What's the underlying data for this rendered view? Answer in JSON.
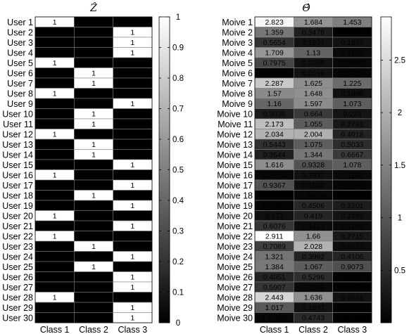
{
  "chart_data": [
    {
      "type": "heatmap",
      "title": "Ẑ",
      "categories": [
        "Class 1",
        "Class 2",
        "Class 3"
      ],
      "rows": [
        "User 1",
        "User 2",
        "User 3",
        "User 4",
        "User 5",
        "User 6",
        "User 7",
        "User 8",
        "User 9",
        "User 10",
        "User 11",
        "User 12",
        "User 13",
        "User 14",
        "User 15",
        "User 16",
        "User 17",
        "User 18",
        "User 19",
        "User 20",
        "User 21",
        "User 22",
        "User 23",
        "User 24",
        "User 25",
        "User 26",
        "User 27",
        "User 28",
        "User 29",
        "User 30"
      ],
      "values": [
        [
          1,
          0,
          0
        ],
        [
          0,
          0,
          1
        ],
        [
          0,
          0,
          1
        ],
        [
          0,
          0,
          1
        ],
        [
          1,
          0,
          0
        ],
        [
          0,
          1,
          0
        ],
        [
          0,
          1,
          0
        ],
        [
          1,
          0,
          0
        ],
        [
          0,
          0,
          1
        ],
        [
          0,
          1,
          0
        ],
        [
          0,
          1,
          0
        ],
        [
          1,
          0,
          0
        ],
        [
          0,
          1,
          0
        ],
        [
          0,
          1,
          0
        ],
        [
          0,
          0,
          1
        ],
        [
          1,
          0,
          0
        ],
        [
          0,
          0,
          1
        ],
        [
          0,
          1,
          0
        ],
        [
          0,
          0,
          1
        ],
        [
          1,
          0,
          0
        ],
        [
          0,
          0,
          1
        ],
        [
          1,
          0,
          0
        ],
        [
          0,
          1,
          0
        ],
        [
          0,
          0,
          1
        ],
        [
          0,
          1,
          0
        ],
        [
          0,
          0,
          1
        ],
        [
          0,
          0,
          1
        ],
        [
          1,
          0,
          0
        ],
        [
          0,
          0,
          1
        ],
        [
          0,
          0,
          1
        ]
      ],
      "labels": [
        [
          "1",
          "0",
          "0"
        ],
        [
          "0",
          "0",
          "1"
        ],
        [
          "0",
          "0",
          "1"
        ],
        [
          "0",
          "0",
          "1"
        ],
        [
          "1",
          "0",
          "0"
        ],
        [
          "0",
          "1",
          "0"
        ],
        [
          "0",
          "1",
          "0"
        ],
        [
          "1",
          "0",
          "0"
        ],
        [
          "0",
          "0",
          "1"
        ],
        [
          "0",
          "1",
          "0"
        ],
        [
          "0",
          "1",
          "0"
        ],
        [
          "1",
          "0",
          "0"
        ],
        [
          "0",
          "1",
          "0"
        ],
        [
          "0",
          "1",
          "0"
        ],
        [
          "0",
          "0",
          "1"
        ],
        [
          "1",
          "0",
          "0"
        ],
        [
          "0",
          "0",
          "1"
        ],
        [
          "0",
          "1",
          "0"
        ],
        [
          "0",
          "0",
          "1"
        ],
        [
          "1",
          "0",
          "0"
        ],
        [
          "0",
          "0",
          "1"
        ],
        [
          "1",
          "0",
          "0"
        ],
        [
          "0",
          "1",
          "0"
        ],
        [
          "0",
          "0",
          "1"
        ],
        [
          "0",
          "1",
          "0"
        ],
        [
          "0",
          "0",
          "1"
        ],
        [
          "0",
          "0",
          "1"
        ],
        [
          "1",
          "0",
          "0"
        ],
        [
          "0",
          "0",
          "1"
        ],
        [
          "0",
          "0",
          "1"
        ]
      ],
      "colorbar": {
        "min": 0,
        "max": 1,
        "ticks": [
          "0",
          "0.1",
          "0.2",
          "0.3",
          "0.4",
          "0.5",
          "0.6",
          "0.7",
          "0.8",
          "0.9",
          "1"
        ]
      },
      "colormap": "gray"
    },
    {
      "type": "heatmap",
      "title": "Θ̂",
      "categories": [
        "Class 1",
        "Class 2",
        "Class 3"
      ],
      "rows": [
        "Moive 1",
        "Moive 2",
        "Moive 3",
        "Moive 4",
        "Moive 5",
        "Moive 6",
        "Moive 7",
        "Moive 8",
        "Moive 9",
        "Moive 10",
        "Moive 11",
        "Moive 12",
        "Moive 13",
        "Moive 14",
        "Moive 15",
        "Moive 16",
        "Moive 17",
        "Moive 18",
        "Moive 19",
        "Moive 20",
        "Moive 21",
        "Moive 22",
        "Moive 23",
        "Moive 24",
        "Moive 25",
        "Moive 26",
        "Moive 27",
        "Moive 28",
        "Moive 29",
        "Moive 30"
      ],
      "values": [
        [
          2.823,
          1.684,
          1.453
        ],
        [
          1.359,
          0.3478,
          0.02208
        ],
        [
          0.5654,
          0.1937,
          0.1987
        ],
        [
          1.709,
          1.13,
          0.1126
        ],
        [
          0.7975,
          0.2055,
          0.09492
        ],
        [
          0.03797,
          0.2016,
          0.07285
        ],
        [
          2.287,
          1.625,
          1.225
        ],
        [
          1.57,
          1.648,
          0.1898
        ],
        [
          1.16,
          1.597,
          1.073
        ],
        [
          0.3038,
          0.664,
          0.223
        ],
        [
          2.173,
          1.055,
          0.2781
        ],
        [
          2.034,
          2.004,
          0.4018
        ],
        [
          0.5443,
          1.075,
          0.5033
        ],
        [
          0.3544,
          1.344,
          0.6667
        ],
        [
          1.616,
          0.9328,
          1.078
        ],
        [
          0.09283,
          0.1937,
          0.1192
        ],
        [
          0.9367,
          0.1502,
          0.0596
        ],
        [
          0.01688,
          0.08696,
          0.004415
        ],
        [
          0.05907,
          0.4506,
          0.3201
        ],
        [
          0.173,
          0.419,
          0.2185
        ],
        [
          0.6076,
          0.1423,
          0.1148
        ],
        [
          2.911,
          1.66,
          0.2715
        ],
        [
          0.7089,
          2.028,
          0.1523
        ],
        [
          1.321,
          0.3992,
          0.4106
        ],
        [
          1.384,
          1.067,
          0.9073
        ],
        [
          0.4051,
          0.5296,
          0.04857
        ],
        [
          0.5907,
          0.1186,
          0.01545
        ],
        [
          2.443,
          1.636,
          0.2031
        ],
        [
          1.017,
          0.1937,
          0.03091
        ],
        [
          0.07595,
          0.4743,
          0.01766
        ]
      ],
      "labels": [
        [
          "2.823",
          "1.684",
          "1.453"
        ],
        [
          "1.359",
          "0.3478",
          "0.02208"
        ],
        [
          "0.5654",
          "0.1937",
          "0.1987"
        ],
        [
          "1.709",
          "1.13",
          "0.1126"
        ],
        [
          "0.7975",
          "0.2055",
          "0.09492"
        ],
        [
          "0.03797",
          "0.2016",
          "0.07285"
        ],
        [
          "2.287",
          "1.625",
          "1.225"
        ],
        [
          "1.57",
          "1.648",
          "0.1898"
        ],
        [
          "1.16",
          "1.597",
          "1.073"
        ],
        [
          "0.3038",
          "0.664",
          "0.223"
        ],
        [
          "2.173",
          "1.055",
          "0.2781"
        ],
        [
          "2.034",
          "2.004",
          "0.4018"
        ],
        [
          "0.5443",
          "1.075",
          "0.5033"
        ],
        [
          "0.3544",
          "1.344",
          "0.6667"
        ],
        [
          "1.616",
          "0.9328",
          "1.078"
        ],
        [
          "0.09283",
          "0.1937",
          "0.1192"
        ],
        [
          "0.9367",
          "0.1502",
          "0.0596"
        ],
        [
          "0.01688",
          "0.08696",
          "0.004415"
        ],
        [
          "0.05907",
          "0.4506",
          "0.3201"
        ],
        [
          "0.173",
          "0.419",
          "0.2185"
        ],
        [
          "0.6076",
          "0.1423",
          "0.1148"
        ],
        [
          "2.911",
          "1.66",
          "0.2715"
        ],
        [
          "0.7089",
          "2.028",
          "0.1523"
        ],
        [
          "1.321",
          "0.3992",
          "0.4106"
        ],
        [
          "1.384",
          "1.067",
          "0.9073"
        ],
        [
          "0.4051",
          "0.5296",
          "0.04857"
        ],
        [
          "0.5907",
          "0.1186",
          "0.01545"
        ],
        [
          "2.443",
          "1.636",
          "0.2031"
        ],
        [
          "1.017",
          "0.1937",
          "0.03091"
        ],
        [
          "0.07595",
          "0.4743",
          "0.01766"
        ]
      ],
      "colorbar": {
        "min": 0,
        "max": 2.911,
        "ticks": [
          "0.5",
          "1",
          "1.5",
          "2",
          "2.5"
        ]
      },
      "colormap": "gray"
    }
  ]
}
